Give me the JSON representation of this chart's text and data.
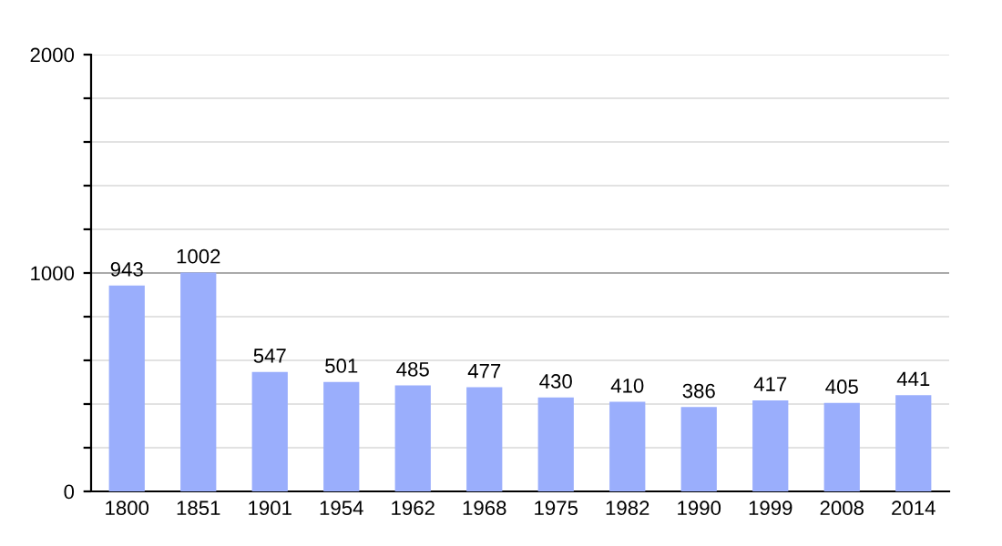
{
  "chart_data": {
    "type": "bar",
    "categories": [
      "1800",
      "1851",
      "1901",
      "1954",
      "1962",
      "1968",
      "1975",
      "1982",
      "1990",
      "1999",
      "2008",
      "2014"
    ],
    "values": [
      943,
      1002,
      547,
      501,
      485,
      477,
      430,
      410,
      386,
      417,
      405,
      441
    ],
    "color": "#9aaefc",
    "data_labels": true,
    "ylim": [
      0,
      2000
    ],
    "yticks": [
      0,
      {
        "value": 200,
        "label": null
      },
      {
        "value": 400,
        "label": null
      },
      {
        "value": 600,
        "label": null
      },
      {
        "value": 800,
        "label": null
      },
      1000,
      {
        "value": 1200,
        "label": null
      },
      {
        "value": 1400,
        "label": null
      },
      {
        "value": 1600,
        "label": null
      },
      {
        "value": 1800,
        "label": null
      },
      2000
    ],
    "grid": "y",
    "ref_lines": [
      {
        "axis": "y",
        "value": 1000,
        "color": "#aaaaaa"
      }
    ]
  }
}
